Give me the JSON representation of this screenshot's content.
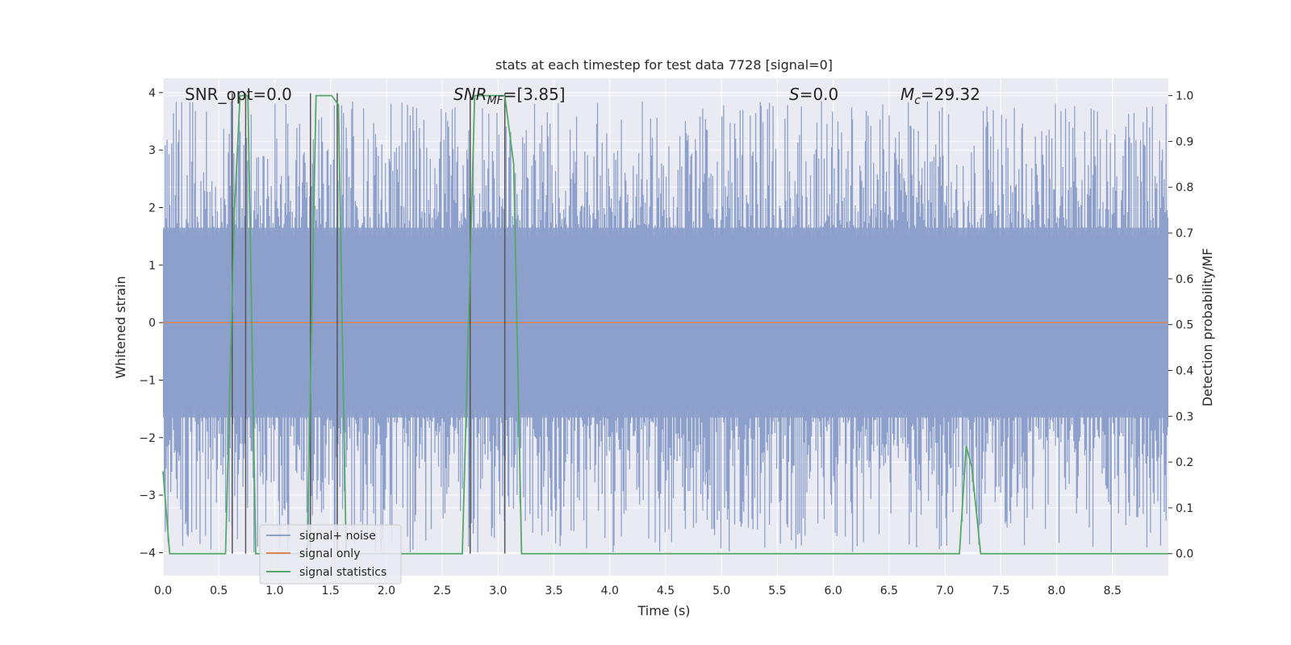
{
  "chart_data": {
    "type": "line",
    "title": "stats at each timestep for test data 7728 [signal=0]",
    "xlabel": "Time (s)",
    "ylabel": "Whitened strain",
    "ylabel_right": "Detection probability/MF",
    "xlim": [
      0,
      9.0
    ],
    "ylim": [
      -4.4,
      4.25
    ],
    "ylim_right": [
      -0.048,
      1.038
    ],
    "xticks": [
      "0.0",
      "0.5",
      "1.0",
      "1.5",
      "2.0",
      "2.5",
      "3.0",
      "3.5",
      "4.0",
      "4.5",
      "5.0",
      "5.5",
      "6.0",
      "6.5",
      "7.0",
      "7.5",
      "8.0",
      "8.5"
    ],
    "yticks": [
      "4",
      "3",
      "2",
      "1",
      "0",
      "−1",
      "−2",
      "−3",
      "−4"
    ],
    "yticks_right": [
      "1.0",
      "0.9",
      "0.8",
      "0.7",
      "0.6",
      "0.5",
      "0.4",
      "0.3",
      "0.2",
      "0.1",
      "0.0"
    ],
    "grid": true,
    "legend_position": "bottom-left",
    "colors": {
      "noise": "#8da0cb",
      "signal": "#dd8452",
      "stats": "#55a868",
      "vline": "#555555",
      "bg": "#eaeaf2",
      "grid": "#ffffff"
    },
    "annotations": {
      "snr_opt": "SNR_opt=0.0",
      "snr_mf_main": "SNR",
      "snr_mf_sub": "MF",
      "snr_mf_val": "=[3.85]",
      "s_sym": "S",
      "s_val": "=0.0",
      "mc_main": "M",
      "mc_sub": "c",
      "mc_val": "=29.32"
    },
    "series": [
      {
        "name": "signal+ noise",
        "noise_envelope": {
          "x": [
            0,
            9.0
          ],
          "band": [
            -1.65,
            1.65
          ],
          "peak_max": 3.85,
          "peak_min": -4.0
        }
      },
      {
        "name": "signal only",
        "x": [
          0,
          9.0
        ],
        "y": [
          0,
          0
        ]
      },
      {
        "name": "signal statistics",
        "x": [
          0.0,
          0.06,
          0.12,
          0.56,
          0.64,
          0.69,
          0.76,
          0.83,
          1.29,
          1.37,
          1.51,
          1.57,
          1.64,
          2.68,
          2.79,
          3.06,
          3.14,
          3.21,
          7.13,
          7.19,
          7.24,
          7.32,
          9.0
        ],
        "y": [
          0.18,
          0.0,
          0.0,
          0.0,
          0.75,
          1.0,
          1.0,
          0.0,
          0.0,
          1.0,
          1.0,
          0.98,
          0.0,
          0.0,
          1.0,
          1.0,
          0.85,
          0.0,
          0.0,
          0.235,
          0.19,
          0.0,
          0.0
        ]
      }
    ],
    "vlines_x": [
      0.62,
      0.74,
      1.32,
      1.56,
      2.75,
      3.06
    ]
  },
  "legend": {
    "items": [
      "signal+ noise",
      "signal only",
      "signal statistics"
    ]
  }
}
